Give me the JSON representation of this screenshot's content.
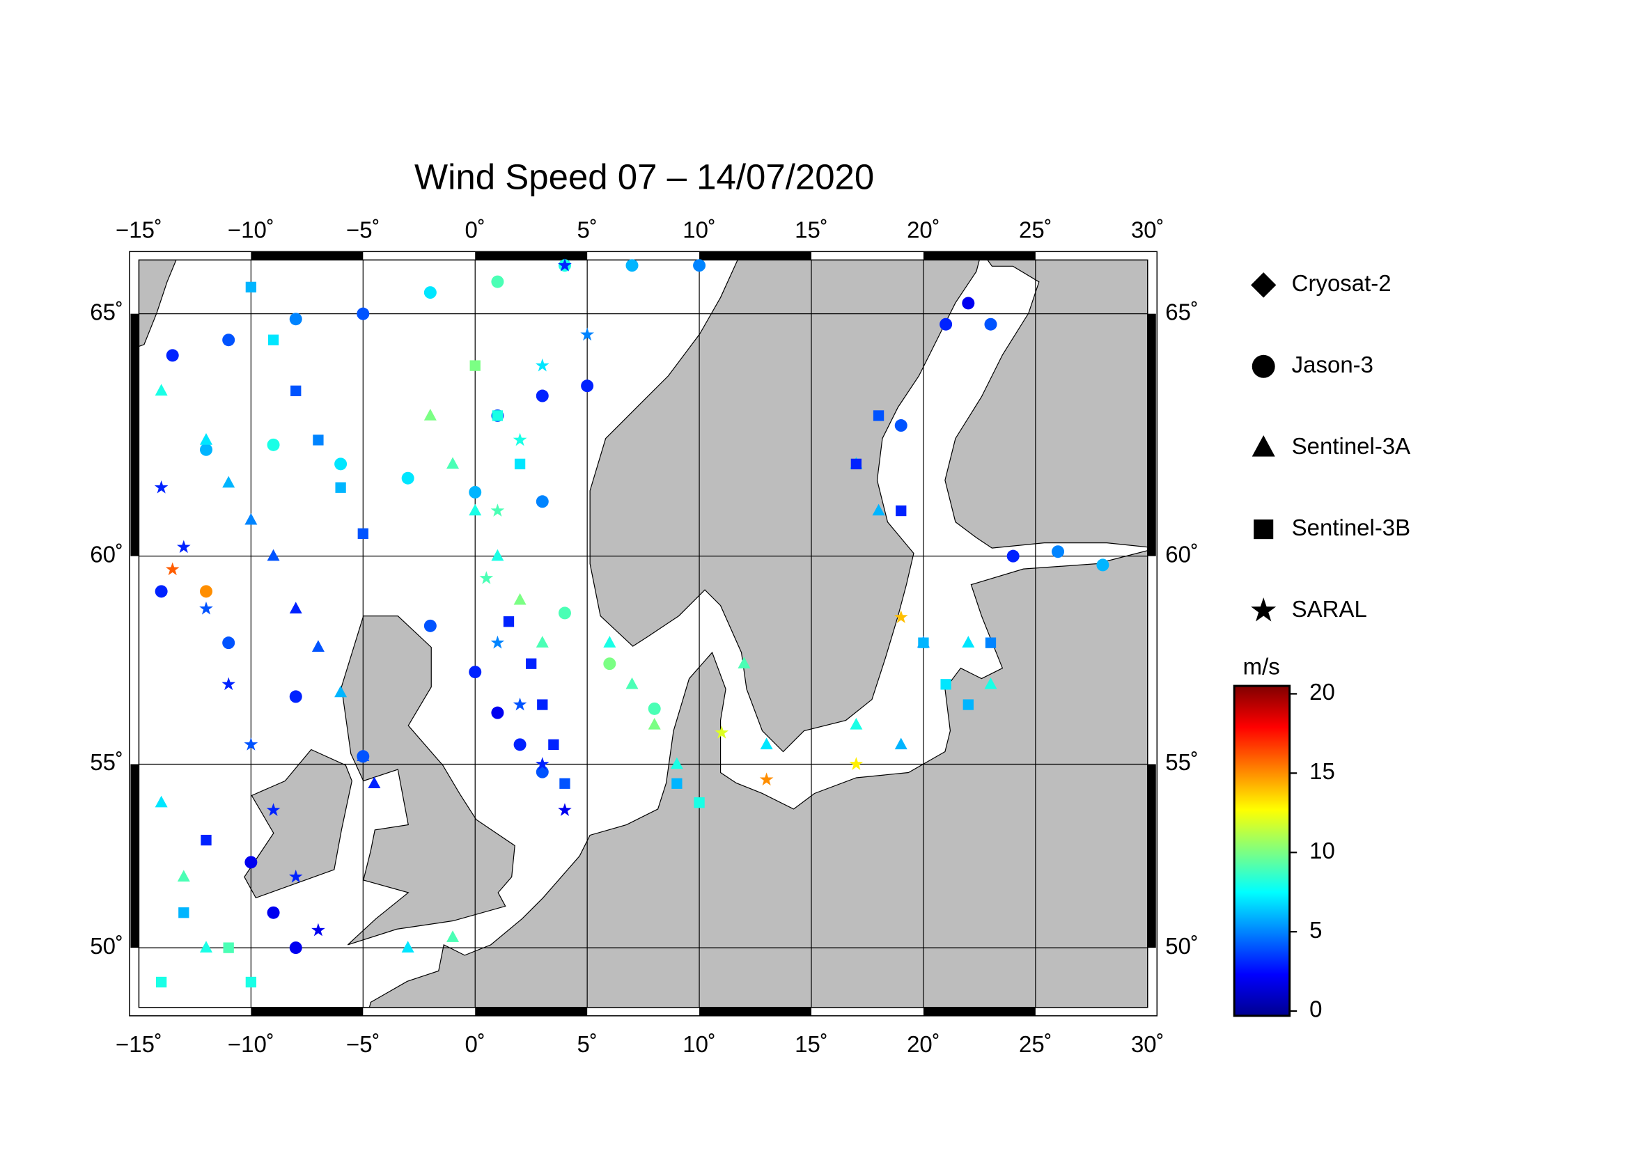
{
  "chart_data": {
    "type": "map",
    "title": "Wind Speed 07 – 14/07/2020",
    "projection": "mercator",
    "xlim": [
      -15,
      30
    ],
    "ylim": [
      48.25,
      66
    ],
    "xticks": [
      {
        "value": -15,
        "label": "−15˚"
      },
      {
        "value": -10,
        "label": "−10˚"
      },
      {
        "value": -5,
        "label": "−5˚"
      },
      {
        "value": 0,
        "label": "0˚"
      },
      {
        "value": 5,
        "label": "5˚"
      },
      {
        "value": 10,
        "label": "10˚"
      },
      {
        "value": 15,
        "label": "15˚"
      },
      {
        "value": 20,
        "label": "20˚"
      },
      {
        "value": 25,
        "label": "25˚"
      },
      {
        "value": 30,
        "label": "30˚"
      }
    ],
    "yticks": [
      {
        "value": 50,
        "label": "50˚"
      },
      {
        "value": 55,
        "label": "55˚"
      },
      {
        "value": 60,
        "label": "60˚"
      },
      {
        "value": 65,
        "label": "65˚"
      }
    ],
    "grid": true,
    "series": [
      {
        "name": "Cryosat-2",
        "marker": "diamond",
        "lon": [],
        "lat": [],
        "values": []
      },
      {
        "name": "Jason-3",
        "marker": "circle",
        "lon": [
          -13.5,
          -11,
          -8,
          -5,
          -2,
          1,
          4,
          7,
          10,
          -12,
          -9,
          -6,
          -3,
          0,
          3,
          -14,
          -11,
          -8,
          -5,
          -2,
          0,
          1,
          2,
          3,
          1,
          3,
          5,
          -10,
          -9,
          -8,
          19,
          21,
          22,
          23,
          24,
          26,
          28,
          4,
          6,
          8,
          -12
        ],
        "lat": [
          64.2,
          64.5,
          64.9,
          65.0,
          65.4,
          65.6,
          65.9,
          65.9,
          65.9,
          62.3,
          62.4,
          62.0,
          61.7,
          61.4,
          61.2,
          59.2,
          58.0,
          56.7,
          55.2,
          58.4,
          57.3,
          56.3,
          55.5,
          54.8,
          63.0,
          63.4,
          63.6,
          52.4,
          51.0,
          50.0,
          62.8,
          64.8,
          65.2,
          64.8,
          60.0,
          60.1,
          59.8,
          58.7,
          57.5,
          56.4,
          59.2
        ],
        "values": [
          3,
          4,
          5,
          4,
          7,
          9,
          8,
          6,
          5,
          6,
          8,
          7,
          7,
          6,
          5,
          3,
          4,
          3,
          4,
          4,
          3,
          2,
          3,
          4,
          4,
          3,
          3,
          2,
          2,
          2,
          4,
          3,
          2,
          4,
          3,
          5,
          6,
          9,
          10,
          9,
          15
        ]
      },
      {
        "name": "Sentinel-3A",
        "marker": "triangle",
        "lon": [
          -14,
          -12,
          -11,
          -10,
          -9,
          -8,
          -7,
          -6,
          -5,
          -4.5,
          -2,
          -1,
          0,
          1,
          2,
          3,
          6,
          7,
          8,
          9,
          12,
          13,
          17,
          19,
          20,
          22,
          23,
          -3,
          -1,
          -12,
          -13,
          -14,
          18,
          17
        ],
        "lat": [
          63.5,
          62.5,
          61.6,
          60.8,
          60.0,
          58.8,
          57.9,
          56.8,
          55.2,
          54.5,
          63,
          62,
          61,
          60,
          59,
          58,
          58,
          57,
          56,
          55,
          57.5,
          55.5,
          56,
          55.5,
          58,
          58,
          57,
          50,
          50.3,
          50,
          52,
          54,
          61,
          62
        ],
        "values": [
          8,
          7,
          6,
          5,
          4,
          3,
          4,
          6,
          4,
          3,
          10,
          9,
          8,
          8,
          10,
          9,
          8,
          9,
          10,
          8,
          9,
          7,
          8,
          6,
          5,
          7,
          8,
          7,
          9,
          8,
          9,
          7,
          6,
          7
        ]
      },
      {
        "name": "Sentinel-3B",
        "marker": "square",
        "lon": [
          -10,
          -9,
          -8,
          -7,
          -6,
          -5,
          0,
          1,
          2,
          1.5,
          2.5,
          3,
          3.5,
          4,
          -12,
          -13,
          -14,
          -11,
          -10,
          9,
          10,
          17,
          18,
          19,
          20,
          21,
          22,
          23
        ],
        "lat": [
          65.5,
          64.5,
          63.5,
          62.5,
          61.5,
          60.5,
          64,
          63,
          62,
          58.5,
          57.5,
          56.5,
          55.5,
          54.5,
          53,
          51,
          49,
          50,
          49,
          54.5,
          54,
          62,
          63,
          61,
          58,
          57,
          56.5,
          58
        ],
        "values": [
          6,
          7,
          4,
          5,
          6,
          4,
          10,
          8,
          7,
          3,
          3,
          3,
          3,
          4,
          3,
          6,
          8,
          9,
          8,
          6,
          8,
          3,
          4,
          3,
          6,
          7,
          6,
          5
        ]
      },
      {
        "name": "SARAL",
        "marker": "star",
        "lon": [
          -14,
          -13,
          -12,
          -11,
          -10,
          -9,
          -8,
          -7,
          3,
          2,
          1,
          0.5,
          1,
          2,
          3,
          4,
          4,
          5,
          -13.5,
          11,
          13,
          17,
          19
        ],
        "lat": [
          61.5,
          60.2,
          58.8,
          57.0,
          55.5,
          53.8,
          52.0,
          50.5,
          64,
          62.5,
          61,
          59.5,
          58,
          56.5,
          55,
          53.8,
          65.9,
          64.6,
          59.7,
          55.8,
          54.6,
          55,
          58.6
        ],
        "values": [
          3,
          3,
          4,
          3,
          4,
          3,
          3,
          2,
          7,
          8,
          9,
          9,
          5,
          4,
          3,
          2,
          3,
          5,
          16,
          12,
          15,
          13,
          14
        ]
      }
    ],
    "colorbar": {
      "label": "m/s",
      "colormap": "jet",
      "clim": [
        -0.3,
        20.5
      ],
      "ticks": [
        0,
        5,
        10,
        15,
        20
      ]
    }
  }
}
